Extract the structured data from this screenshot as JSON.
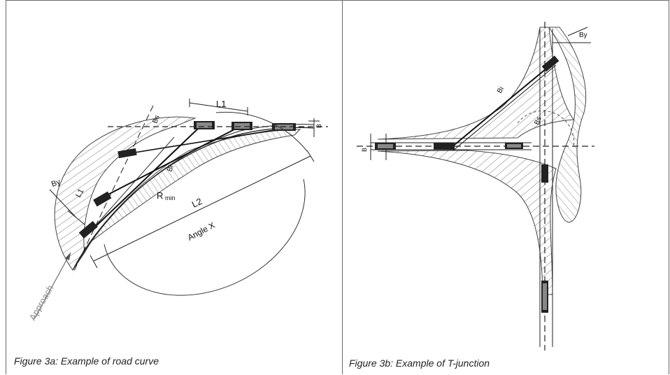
{
  "figure_a": {
    "caption": "Figure 3a: Example of road curve",
    "labels": {
      "l1_top": "L1",
      "l1_left": "L1",
      "by": "By",
      "bs": "Bs",
      "bi": "Bi",
      "b": "B",
      "r_min": "R",
      "r_min_sub": "min",
      "l2": "L2",
      "angle_x": "Angle X",
      "approach": "Approach"
    }
  },
  "figure_b": {
    "caption": "Figure 3b: Example of T-junction",
    "labels": {
      "by": "By",
      "bi": "Bi",
      "bs": "Bs",
      "b": "B"
    }
  }
}
